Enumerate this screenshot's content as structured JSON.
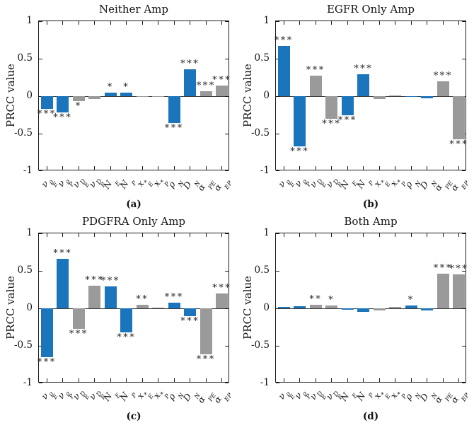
{
  "chart_data": {
    "type": "bar",
    "ylabel": "PRCC value",
    "ylim": [
      -1,
      1
    ],
    "y_ticks": [
      1,
      0.5,
      0,
      -0.5,
      -1
    ],
    "grid": false,
    "colors": {
      "blue": "#1b75bc",
      "gray": "#9a9a9a",
      "axis": "#1a1a1a"
    },
    "color_pattern": [
      "blue",
      "blue",
      "gray",
      "gray",
      "blue",
      "blue",
      "gray",
      "gray",
      "blue",
      "blue",
      "gray",
      "gray"
    ],
    "category_labels": [
      {
        "base": "ν",
        "sup": "ρ",
        "sub": "E"
      },
      {
        "base": "ν",
        "sup": "ρ",
        "sub": "P"
      },
      {
        "base": "ν",
        "sup": "D",
        "sub": "E"
      },
      {
        "base": "ν",
        "sup": "D",
        "sub": "P"
      },
      {
        "base": "N",
        "sup": "",
        "sub": "E"
      },
      {
        "base": "N",
        "sup": "",
        "sub": "P"
      },
      {
        "base": "x",
        "sup": "*",
        "sub": "E"
      },
      {
        "base": "x",
        "sup": "*",
        "sub": "P"
      },
      {
        "base": "ρ",
        "sup": "",
        "sub": "N"
      },
      {
        "base": "D",
        "sup": "",
        "sub": "N"
      },
      {
        "base": "α",
        "sup": "",
        "sub": "PE"
      },
      {
        "base": "α",
        "sup": "",
        "sub": "EP"
      }
    ],
    "charts": [
      {
        "id": "a",
        "title": "Neither Amp",
        "caption": "(a)",
        "values": [
          -0.17,
          -0.22,
          -0.07,
          -0.04,
          0.05,
          0.05,
          -0.005,
          -0.005,
          -0.36,
          0.36,
          0.07,
          0.14
        ],
        "stars": [
          "***",
          "***",
          "*",
          "",
          "*",
          "*",
          "",
          "",
          "***",
          "***",
          "***",
          "***"
        ]
      },
      {
        "id": "b",
        "title": "EGFR Only Amp",
        "caption": "(b)",
        "values": [
          0.67,
          -0.67,
          0.27,
          -0.3,
          -0.25,
          0.29,
          -0.04,
          0.005,
          -0.01,
          -0.03,
          0.2,
          -0.58
        ],
        "stars": [
          "***",
          "***",
          "***",
          "***",
          "***",
          "***",
          "",
          "",
          "",
          "",
          "***",
          "***"
        ]
      },
      {
        "id": "c",
        "title": "PDGFRA Only Amp",
        "caption": "(c)",
        "values": [
          -0.65,
          0.66,
          -0.27,
          0.3,
          0.29,
          -0.32,
          0.05,
          0.005,
          0.08,
          -0.1,
          -0.61,
          0.2
        ],
        "stars": [
          "***",
          "***",
          "***",
          "***",
          "***",
          "***",
          "**",
          "",
          "***",
          "***",
          "***",
          "***"
        ]
      },
      {
        "id": "d",
        "title": "Both Amp",
        "caption": "(d)",
        "values": [
          0.02,
          0.03,
          0.05,
          0.04,
          -0.02,
          -0.045,
          -0.03,
          0.02,
          0.04,
          -0.03,
          0.46,
          0.45
        ],
        "stars": [
          "",
          "",
          "**",
          "*",
          "",
          "",
          "",
          "",
          "*",
          "",
          "***",
          "***"
        ]
      }
    ]
  }
}
